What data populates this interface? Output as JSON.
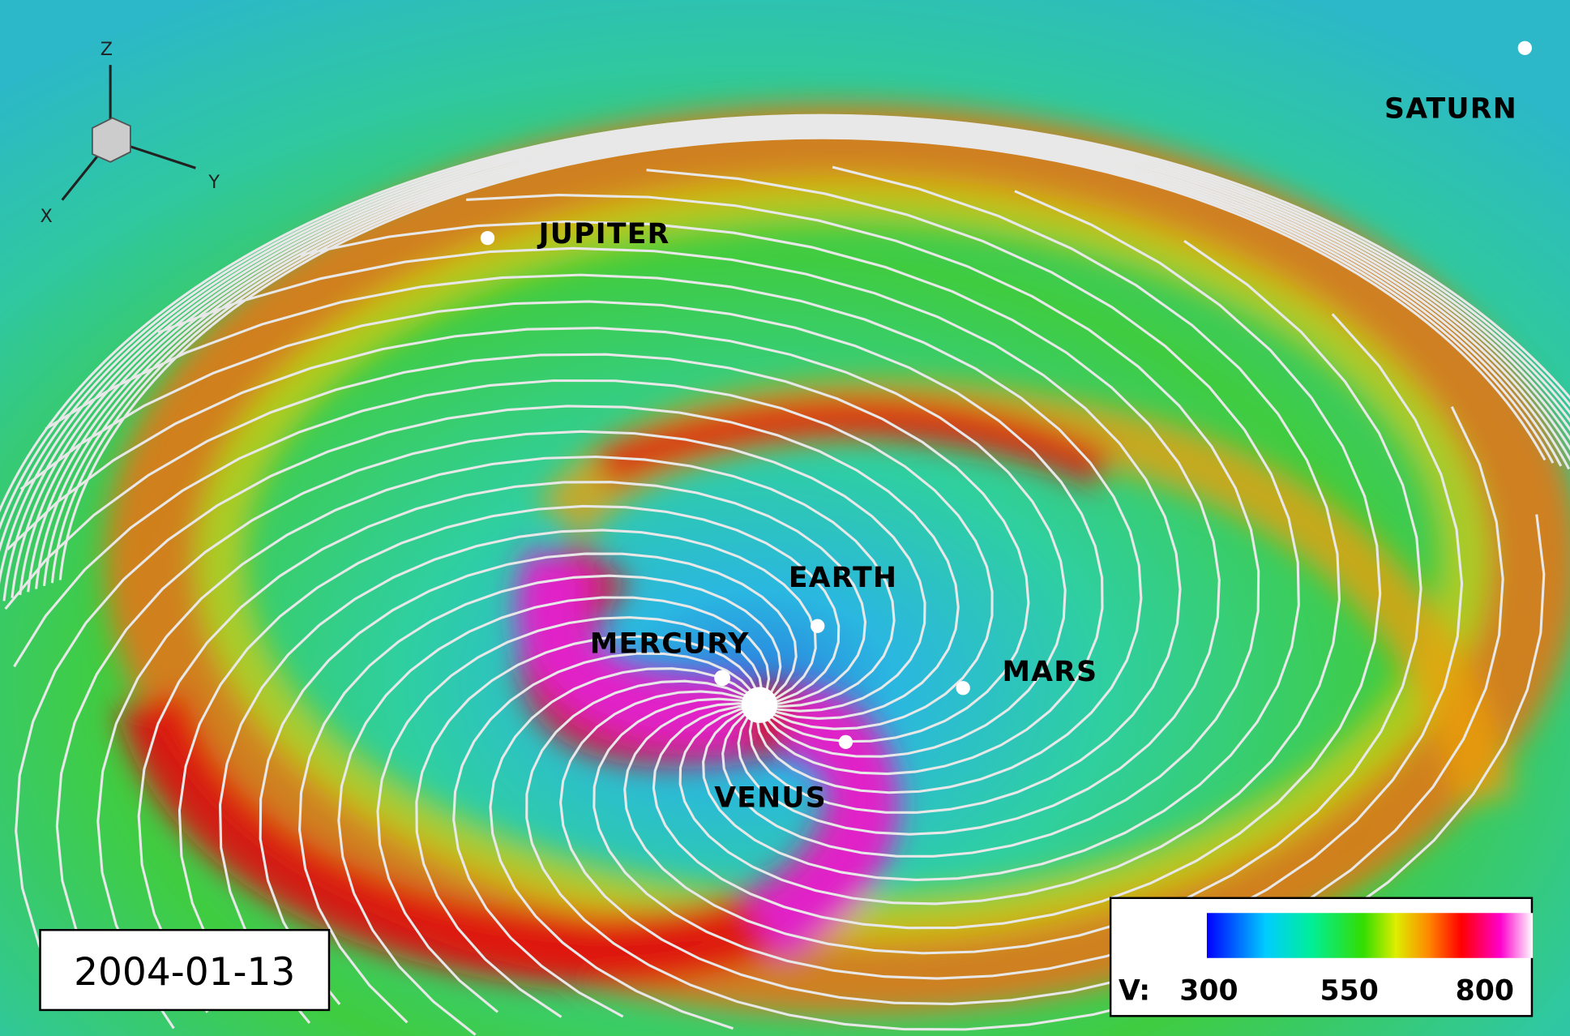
{
  "timestamp": "2004-01-13",
  "planets": [
    {
      "label": "SATURN"
    },
    {
      "label": "JUPITER"
    },
    {
      "label": "EARTH"
    },
    {
      "label": "MERCURY"
    },
    {
      "label": "MARS"
    },
    {
      "label": "VENUS"
    }
  ],
  "axes": {
    "z": "Z",
    "y": "Y",
    "x": "X"
  },
  "colorbar": {
    "label": "V:",
    "ticks": [
      "300",
      "550",
      "800"
    ]
  }
}
